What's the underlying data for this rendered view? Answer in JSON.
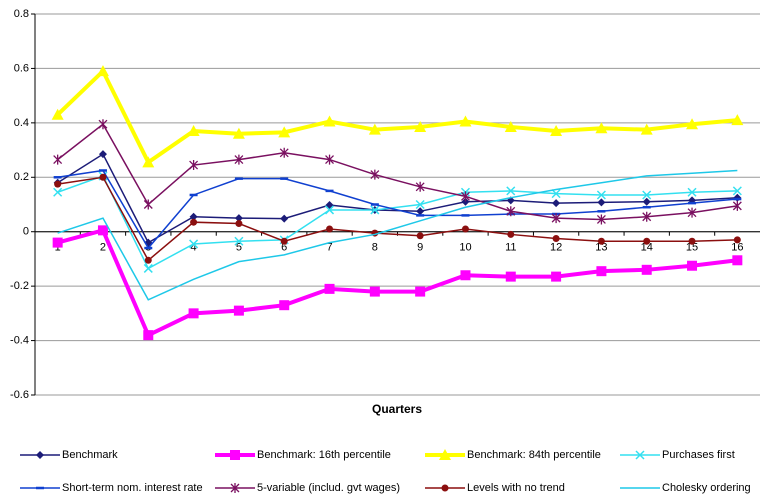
{
  "chart_data": {
    "type": "line",
    "x_label": "Quarters",
    "categories": [
      "1",
      "2",
      "3",
      "4",
      "5",
      "6",
      "7",
      "8",
      "9",
      "10",
      "11",
      "12",
      "13",
      "14",
      "15",
      "16"
    ],
    "ylim": [
      -0.6,
      0.8
    ],
    "yticks": [
      -0.6,
      -0.4,
      -0.2,
      0,
      0.2,
      0.4,
      0.6,
      0.8
    ],
    "grid": true,
    "series": [
      {
        "name": "Benchmark",
        "color": "#1c1c78",
        "marker": "diamond",
        "line_width": 1.5,
        "values": [
          0.18,
          0.285,
          -0.04,
          0.055,
          0.05,
          0.048,
          0.098,
          0.08,
          0.075,
          0.11,
          0.115,
          0.105,
          0.108,
          0.11,
          0.115,
          0.125
        ]
      },
      {
        "name": "Benchmark: 16th percentile",
        "color": "#ff00ff",
        "marker": "square",
        "line_width": 4,
        "values": [
          -0.04,
          0.005,
          -0.38,
          -0.3,
          -0.29,
          -0.27,
          -0.21,
          -0.22,
          -0.22,
          -0.16,
          -0.165,
          -0.165,
          -0.145,
          -0.14,
          -0.125,
          -0.105
        ]
      },
      {
        "name": "Benchmark: 84th percentile",
        "color": "#ffff00",
        "marker": "triangle",
        "line_width": 4,
        "values": [
          0.43,
          0.59,
          0.255,
          0.37,
          0.36,
          0.365,
          0.405,
          0.375,
          0.385,
          0.405,
          0.385,
          0.37,
          0.38,
          0.375,
          0.395,
          0.41
        ]
      },
      {
        "name": "Purchases first",
        "color": "#33e0f0",
        "marker": "x",
        "line_width": 1.5,
        "values": [
          0.145,
          0.205,
          -0.135,
          -0.045,
          -0.035,
          -0.03,
          0.08,
          0.08,
          0.1,
          0.145,
          0.15,
          0.14,
          0.135,
          0.135,
          0.145,
          0.15
        ]
      },
      {
        "name": "Short-term nom. interest rate",
        "color": "#1040d0",
        "marker": "dash",
        "line_width": 1.5,
        "values": [
          0.2,
          0.225,
          -0.06,
          0.135,
          0.195,
          0.195,
          0.15,
          0.1,
          0.06,
          0.06,
          0.065,
          0.065,
          0.075,
          0.09,
          0.105,
          0.12
        ]
      },
      {
        "name": "5-variable (includ. gvt wages)",
        "color": "#7a1060",
        "marker": "star",
        "line_width": 1.5,
        "values": [
          0.265,
          0.395,
          0.1,
          0.245,
          0.265,
          0.29,
          0.265,
          0.21,
          0.165,
          0.13,
          0.075,
          0.05,
          0.045,
          0.055,
          0.07,
          0.095
        ]
      },
      {
        "name": "Levels with no trend",
        "color": "#8b0f0f",
        "marker": "circle",
        "line_width": 1.5,
        "values": [
          0.175,
          0.2,
          -0.105,
          0.035,
          0.03,
          -0.035,
          0.01,
          -0.005,
          -0.015,
          0.01,
          -0.01,
          -0.025,
          -0.035,
          -0.035,
          -0.035,
          -0.03
        ]
      },
      {
        "name": "Cholesky ordering",
        "color": "#1ec8e8",
        "marker": "none",
        "line_width": 1.5,
        "values": [
          -0.005,
          0.05,
          -0.25,
          -0.175,
          -0.11,
          -0.085,
          -0.04,
          -0.01,
          0.04,
          0.09,
          0.125,
          0.155,
          0.18,
          0.205,
          0.215,
          0.225
        ]
      }
    ]
  }
}
